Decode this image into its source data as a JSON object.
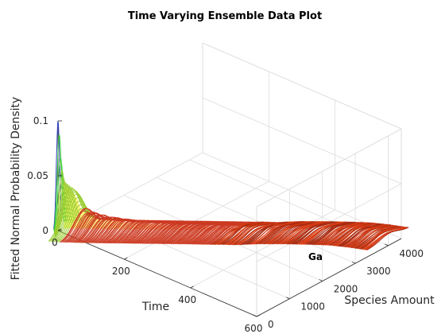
{
  "chart_data": {
    "type": "surface3d",
    "title": "Time Varying Ensemble Data Plot",
    "xlabel": "Time",
    "ylabel": "Species Amount",
    "zlabel": "Fitted Normal Probability Density",
    "xlim": [
      0,
      600
    ],
    "ylim": [
      0,
      4400
    ],
    "zlim": [
      0,
      0.1
    ],
    "x_ticks": [
      0,
      200,
      400,
      600
    ],
    "y_ticks": [
      0,
      1000,
      2000,
      3000,
      4000
    ],
    "z_ticks": [
      0,
      0.05,
      0.1
    ],
    "x_tick_labels": [
      "0",
      "200",
      "400",
      "600"
    ],
    "y_tick_labels": [
      "0",
      "1000",
      "2000",
      "3000",
      "4000"
    ],
    "z_tick_labels": [
      "0",
      "0.05",
      "0.1"
    ],
    "grid": true,
    "colormap": "hot",
    "annotation": "Ga",
    "series": [
      {
        "name": "Ga",
        "ridge_mean": {
          "time": [
            0,
            50,
            100,
            150,
            200,
            260,
            300,
            320,
            340,
            380,
            420,
            460,
            500,
            540,
            580
          ],
          "amount": [
            0,
            380,
            760,
            1150,
            1540,
            2000,
            2300,
            2460,
            2600,
            2980,
            3300,
            3600,
            3880,
            4080,
            4250
          ]
        },
        "peak_density": {
          "time": [
            0,
            2,
            5,
            10,
            20,
            30,
            40,
            60,
            80,
            120,
            200,
            300,
            400,
            500,
            600
          ],
          "value": [
            0.1,
            0.09,
            0.06,
            0.045,
            0.04,
            0.035,
            0.02,
            0.015,
            0.012,
            0.009,
            0.006,
            0.005,
            0.004,
            0.004,
            0.004
          ]
        }
      }
    ]
  }
}
